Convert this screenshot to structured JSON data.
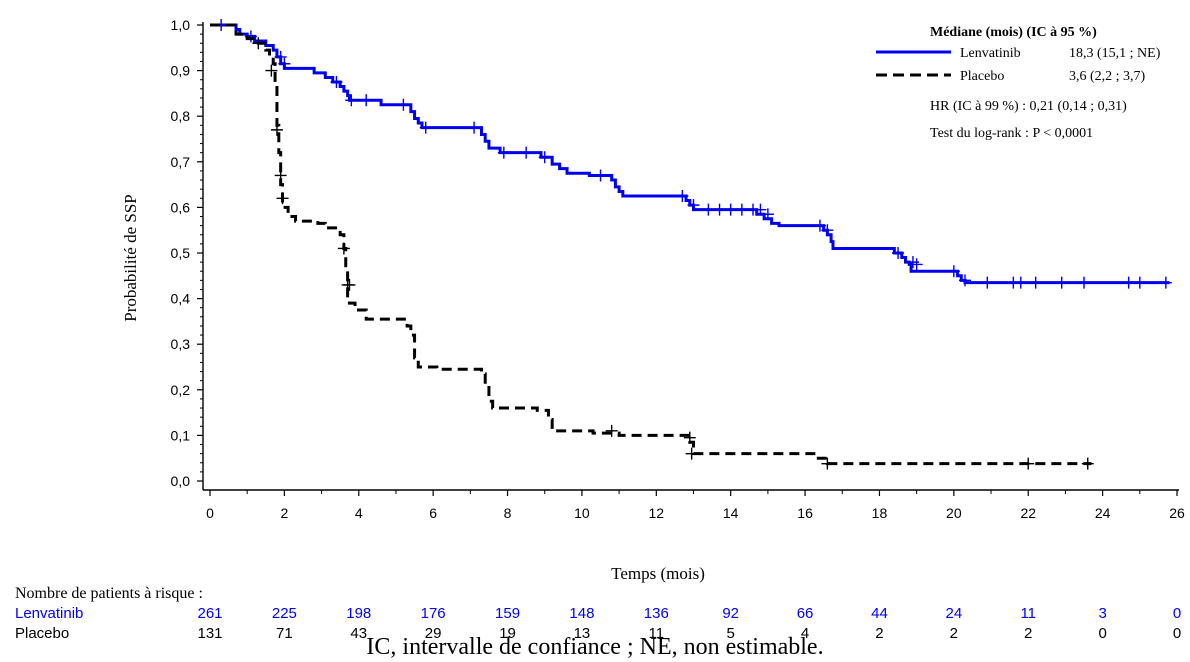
{
  "colors": {
    "lenvatinib": "#0000ee",
    "placebo": "#000000",
    "axis": "#000000"
  },
  "chart_data": {
    "type": "line",
    "subtype": "kaplan-meier",
    "xlabel": "Temps (mois)",
    "ylabel": "Probabilité de SSP",
    "xlim": [
      0,
      26
    ],
    "ylim": [
      0,
      1
    ],
    "xticks": [
      "0",
      "2",
      "4",
      "6",
      "8",
      "10",
      "12",
      "14",
      "16",
      "18",
      "20",
      "22",
      "24",
      "26"
    ],
    "yticks": [
      "0,0",
      "0,1",
      "0,2",
      "0,3",
      "0,4",
      "0,5",
      "0,6",
      "0,7",
      "0,8",
      "0,9",
      "1,0"
    ],
    "grid": false,
    "legend_position": "top-right",
    "legend": {
      "title": "Médiane (mois) (IC à 95 %)",
      "series": [
        {
          "name": "Lenvatinib",
          "value": "18,3 (15,1 ; NE)"
        },
        {
          "name": "Placebo",
          "value": "3,6 (2,2 ; 3,7)"
        }
      ],
      "hr": "HR (IC à 99 %) : 0,21 (0,14 ; 0,31)",
      "logrank": "Test du log-rank : P < 0,0001"
    },
    "series": [
      {
        "name": "Lenvatinib",
        "style": "solid",
        "steps": [
          [
            0,
            1.0
          ],
          [
            0.7,
            0.99
          ],
          [
            0.8,
            0.98
          ],
          [
            1.0,
            0.975
          ],
          [
            1.2,
            0.965
          ],
          [
            1.5,
            0.955
          ],
          [
            1.7,
            0.945
          ],
          [
            1.8,
            0.93
          ],
          [
            1.9,
            0.915
          ],
          [
            2.0,
            0.905
          ],
          [
            2.8,
            0.895
          ],
          [
            3.1,
            0.885
          ],
          [
            3.3,
            0.875
          ],
          [
            3.5,
            0.865
          ],
          [
            3.6,
            0.855
          ],
          [
            3.7,
            0.845
          ],
          [
            3.75,
            0.835
          ],
          [
            4.6,
            0.825
          ],
          [
            5.4,
            0.81
          ],
          [
            5.5,
            0.795
          ],
          [
            5.6,
            0.785
          ],
          [
            5.7,
            0.775
          ],
          [
            7.3,
            0.76
          ],
          [
            7.4,
            0.745
          ],
          [
            7.5,
            0.73
          ],
          [
            7.8,
            0.72
          ],
          [
            8.9,
            0.71
          ],
          [
            9.2,
            0.695
          ],
          [
            9.4,
            0.685
          ],
          [
            9.6,
            0.675
          ],
          [
            10.2,
            0.67
          ],
          [
            10.8,
            0.66
          ],
          [
            10.9,
            0.645
          ],
          [
            11.0,
            0.635
          ],
          [
            11.1,
            0.625
          ],
          [
            12.8,
            0.615
          ],
          [
            12.9,
            0.605
          ],
          [
            13.0,
            0.595
          ],
          [
            14.7,
            0.585
          ],
          [
            14.9,
            0.575
          ],
          [
            15.1,
            0.565
          ],
          [
            15.3,
            0.56
          ],
          [
            16.5,
            0.55
          ],
          [
            16.6,
            0.54
          ],
          [
            16.7,
            0.525
          ],
          [
            16.75,
            0.51
          ],
          [
            18.4,
            0.5
          ],
          [
            18.6,
            0.49
          ],
          [
            18.7,
            0.48
          ],
          [
            18.8,
            0.475
          ],
          [
            18.85,
            0.46
          ],
          [
            20.1,
            0.45
          ],
          [
            20.2,
            0.44
          ],
          [
            20.3,
            0.435
          ],
          [
            25.8,
            0.435
          ]
        ],
        "censored": [
          [
            0.3,
            1.0
          ],
          [
            1.1,
            0.975
          ],
          [
            1.9,
            0.93
          ],
          [
            2.0,
            0.915
          ],
          [
            3.4,
            0.875
          ],
          [
            3.8,
            0.835
          ],
          [
            4.2,
            0.835
          ],
          [
            5.2,
            0.825
          ],
          [
            5.8,
            0.775
          ],
          [
            7.1,
            0.775
          ],
          [
            7.9,
            0.72
          ],
          [
            8.5,
            0.72
          ],
          [
            9.0,
            0.71
          ],
          [
            10.5,
            0.67
          ],
          [
            12.7,
            0.625
          ],
          [
            13.0,
            0.605
          ],
          [
            13.4,
            0.595
          ],
          [
            13.7,
            0.595
          ],
          [
            14.0,
            0.595
          ],
          [
            14.3,
            0.595
          ],
          [
            14.6,
            0.595
          ],
          [
            14.8,
            0.595
          ],
          [
            15.0,
            0.585
          ],
          [
            16.4,
            0.56
          ],
          [
            16.6,
            0.55
          ],
          [
            18.5,
            0.5
          ],
          [
            18.9,
            0.48
          ],
          [
            19.0,
            0.475
          ],
          [
            20.0,
            0.46
          ],
          [
            20.3,
            0.44
          ],
          [
            20.9,
            0.435
          ],
          [
            21.6,
            0.435
          ],
          [
            21.8,
            0.435
          ],
          [
            22.2,
            0.435
          ],
          [
            22.9,
            0.435
          ],
          [
            23.5,
            0.435
          ],
          [
            24.7,
            0.435
          ],
          [
            25.0,
            0.435
          ],
          [
            25.7,
            0.435
          ]
        ]
      },
      {
        "name": "Placebo",
        "style": "dashed",
        "steps": [
          [
            0,
            1.0
          ],
          [
            0.7,
            0.98
          ],
          [
            1.0,
            0.97
          ],
          [
            1.3,
            0.96
          ],
          [
            1.5,
            0.945
          ],
          [
            1.6,
            0.93
          ],
          [
            1.7,
            0.915
          ],
          [
            1.75,
            0.87
          ],
          [
            1.8,
            0.78
          ],
          [
            1.85,
            0.72
          ],
          [
            1.9,
            0.65
          ],
          [
            1.95,
            0.6
          ],
          [
            2.1,
            0.58
          ],
          [
            2.3,
            0.57
          ],
          [
            2.9,
            0.565
          ],
          [
            3.1,
            0.555
          ],
          [
            3.5,
            0.54
          ],
          [
            3.6,
            0.51
          ],
          [
            3.65,
            0.46
          ],
          [
            3.7,
            0.4
          ],
          [
            3.75,
            0.39
          ],
          [
            3.9,
            0.375
          ],
          [
            4.2,
            0.355
          ],
          [
            5.3,
            0.34
          ],
          [
            5.4,
            0.32
          ],
          [
            5.5,
            0.27
          ],
          [
            5.6,
            0.25
          ],
          [
            6.1,
            0.245
          ],
          [
            7.3,
            0.235
          ],
          [
            7.4,
            0.21
          ],
          [
            7.5,
            0.175
          ],
          [
            7.6,
            0.16
          ],
          [
            8.8,
            0.155
          ],
          [
            9.1,
            0.135
          ],
          [
            9.2,
            0.11
          ],
          [
            10.3,
            0.105
          ],
          [
            11.0,
            0.1
          ],
          [
            12.9,
            0.085
          ],
          [
            13.0,
            0.06
          ],
          [
            16.3,
            0.05
          ],
          [
            16.6,
            0.038
          ],
          [
            23.7,
            0.038
          ]
        ],
        "censored": [
          [
            1.3,
            0.96
          ],
          [
            1.65,
            0.9
          ],
          [
            1.8,
            0.77
          ],
          [
            1.9,
            0.67
          ],
          [
            1.95,
            0.62
          ],
          [
            3.6,
            0.51
          ],
          [
            3.7,
            0.43
          ],
          [
            3.75,
            0.43
          ],
          [
            10.8,
            0.11
          ],
          [
            12.9,
            0.095
          ],
          [
            12.95,
            0.06
          ],
          [
            16.6,
            0.038
          ],
          [
            22.0,
            0.038
          ],
          [
            23.6,
            0.038
          ]
        ]
      }
    ]
  },
  "risk_table": {
    "title": "Nombre de patients à risque :",
    "rows": [
      {
        "name": "Lenvatinib",
        "values": [
          "261",
          "225",
          "198",
          "176",
          "159",
          "148",
          "136",
          "92",
          "66",
          "44",
          "24",
          "11",
          "3",
          "0"
        ]
      },
      {
        "name": "Placebo",
        "values": [
          "131",
          "71",
          "43",
          "29",
          "19",
          "13",
          "11",
          "5",
          "4",
          "2",
          "2",
          "2",
          "0",
          "0"
        ]
      }
    ]
  },
  "caption": "IC, intervalle de confiance ; NE, non estimable."
}
